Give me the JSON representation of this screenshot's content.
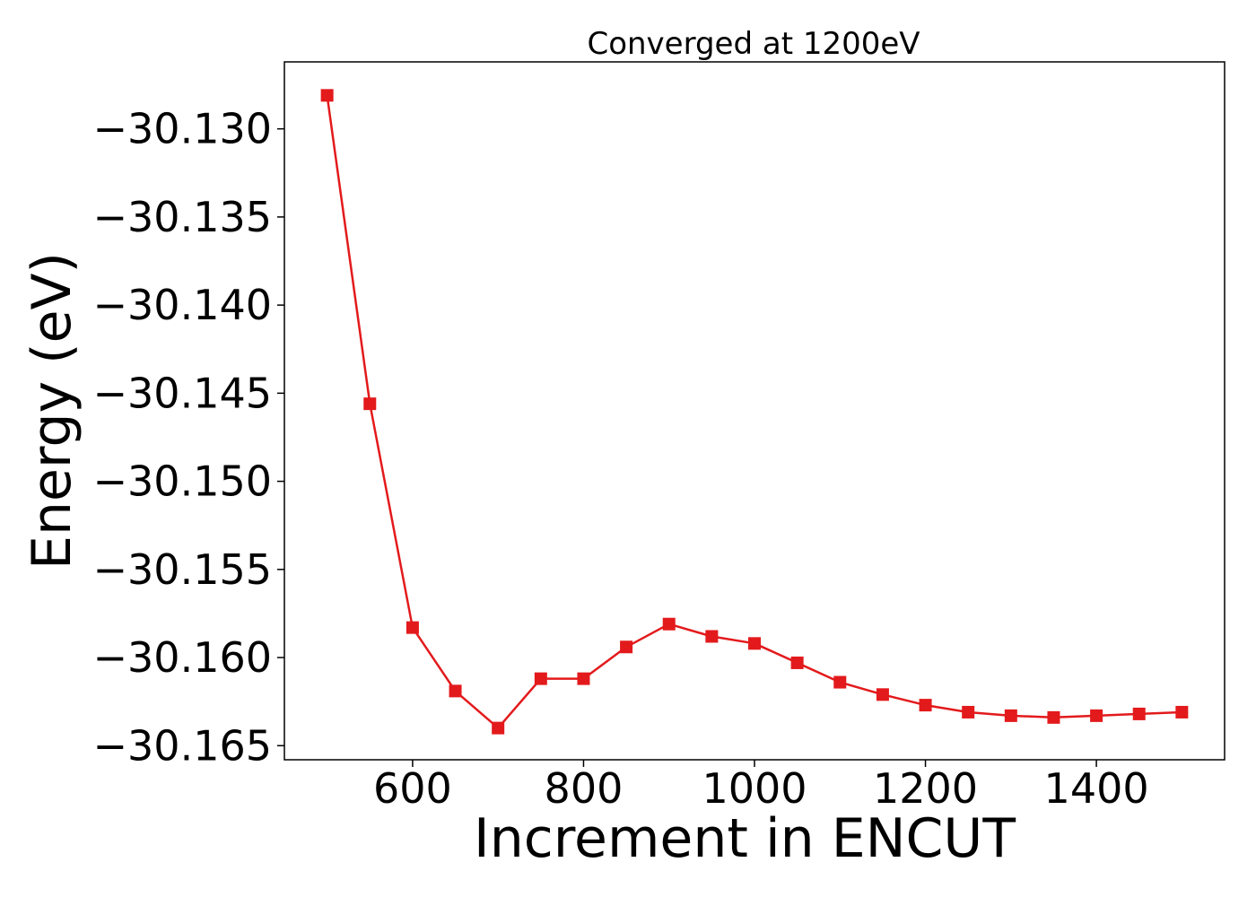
{
  "chart_data": {
    "type": "line",
    "title": "Converged at 1200eV",
    "xlabel": "Increment in ENCUT",
    "ylabel": "Energy (eV)",
    "xlim": [
      450,
      1550
    ],
    "ylim": [
      -30.1658,
      -30.1262
    ],
    "xticks": [
      600,
      800,
      1000,
      1200,
      1400
    ],
    "xtick_labels": [
      "600",
      "800",
      "1000",
      "1200",
      "1400"
    ],
    "yticks": [
      -30.13,
      -30.135,
      -30.14,
      -30.145,
      -30.15,
      -30.155,
      -30.16,
      -30.165
    ],
    "ytick_labels": [
      "−30.130",
      "−30.135",
      "−30.140",
      "−30.145",
      "−30.150",
      "−30.155",
      "−30.160",
      "−30.165"
    ],
    "grid": false,
    "series": [
      {
        "color": "#e31a1c",
        "marker": "square",
        "x": [
          500,
          550,
          600,
          650,
          700,
          750,
          800,
          850,
          900,
          950,
          1000,
          1050,
          1100,
          1150,
          1200,
          1250,
          1300,
          1350,
          1400,
          1450,
          1500
        ],
        "y": [
          -30.1281,
          -30.1456,
          -30.1583,
          -30.1619,
          -30.164,
          -30.1612,
          -30.1612,
          -30.1594,
          -30.1581,
          -30.1588,
          -30.1592,
          -30.1603,
          -30.1614,
          -30.1621,
          -30.1627,
          -30.1631,
          -30.1633,
          -30.1634,
          -30.1633,
          -30.1632,
          -30.1631
        ]
      }
    ]
  }
}
